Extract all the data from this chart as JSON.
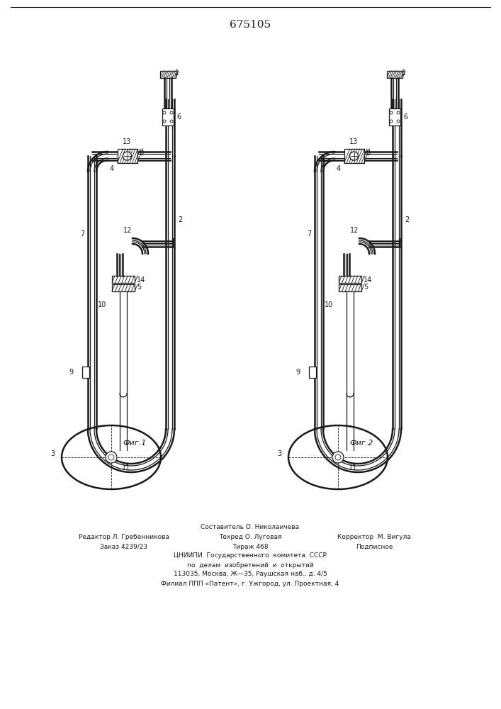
{
  "patent_number": "675105",
  "background_color": "#ffffff",
  "line_color": "#1a1a1a",
  "fig1_label": "Фиг.1",
  "fig2_label": "Фиг.2",
  "footer_line1": "Составитель О. Николаичева",
  "footer_line2_left": "Редактор Л. Гребенникова",
  "footer_line2_mid": "Техред О. Луговая",
  "footer_line2_right": "Корректор  М. Вигула",
  "footer_line3_left": "Заказ 4239/23",
  "footer_line3_mid": "Тираж 468",
  "footer_line3_right": "Подписное",
  "footer_line4": "ЦНИИПИ  Государственного  комитета  СССР",
  "footer_line5": "по  делам  изобретений  и  открытий",
  "footer_line6": "113035, Москва, Ж—35, Раушская наб., д. 4/5",
  "footer_line7": "Филиал ППП «Патент», г. Ужгород, ул. Проектная, 4"
}
